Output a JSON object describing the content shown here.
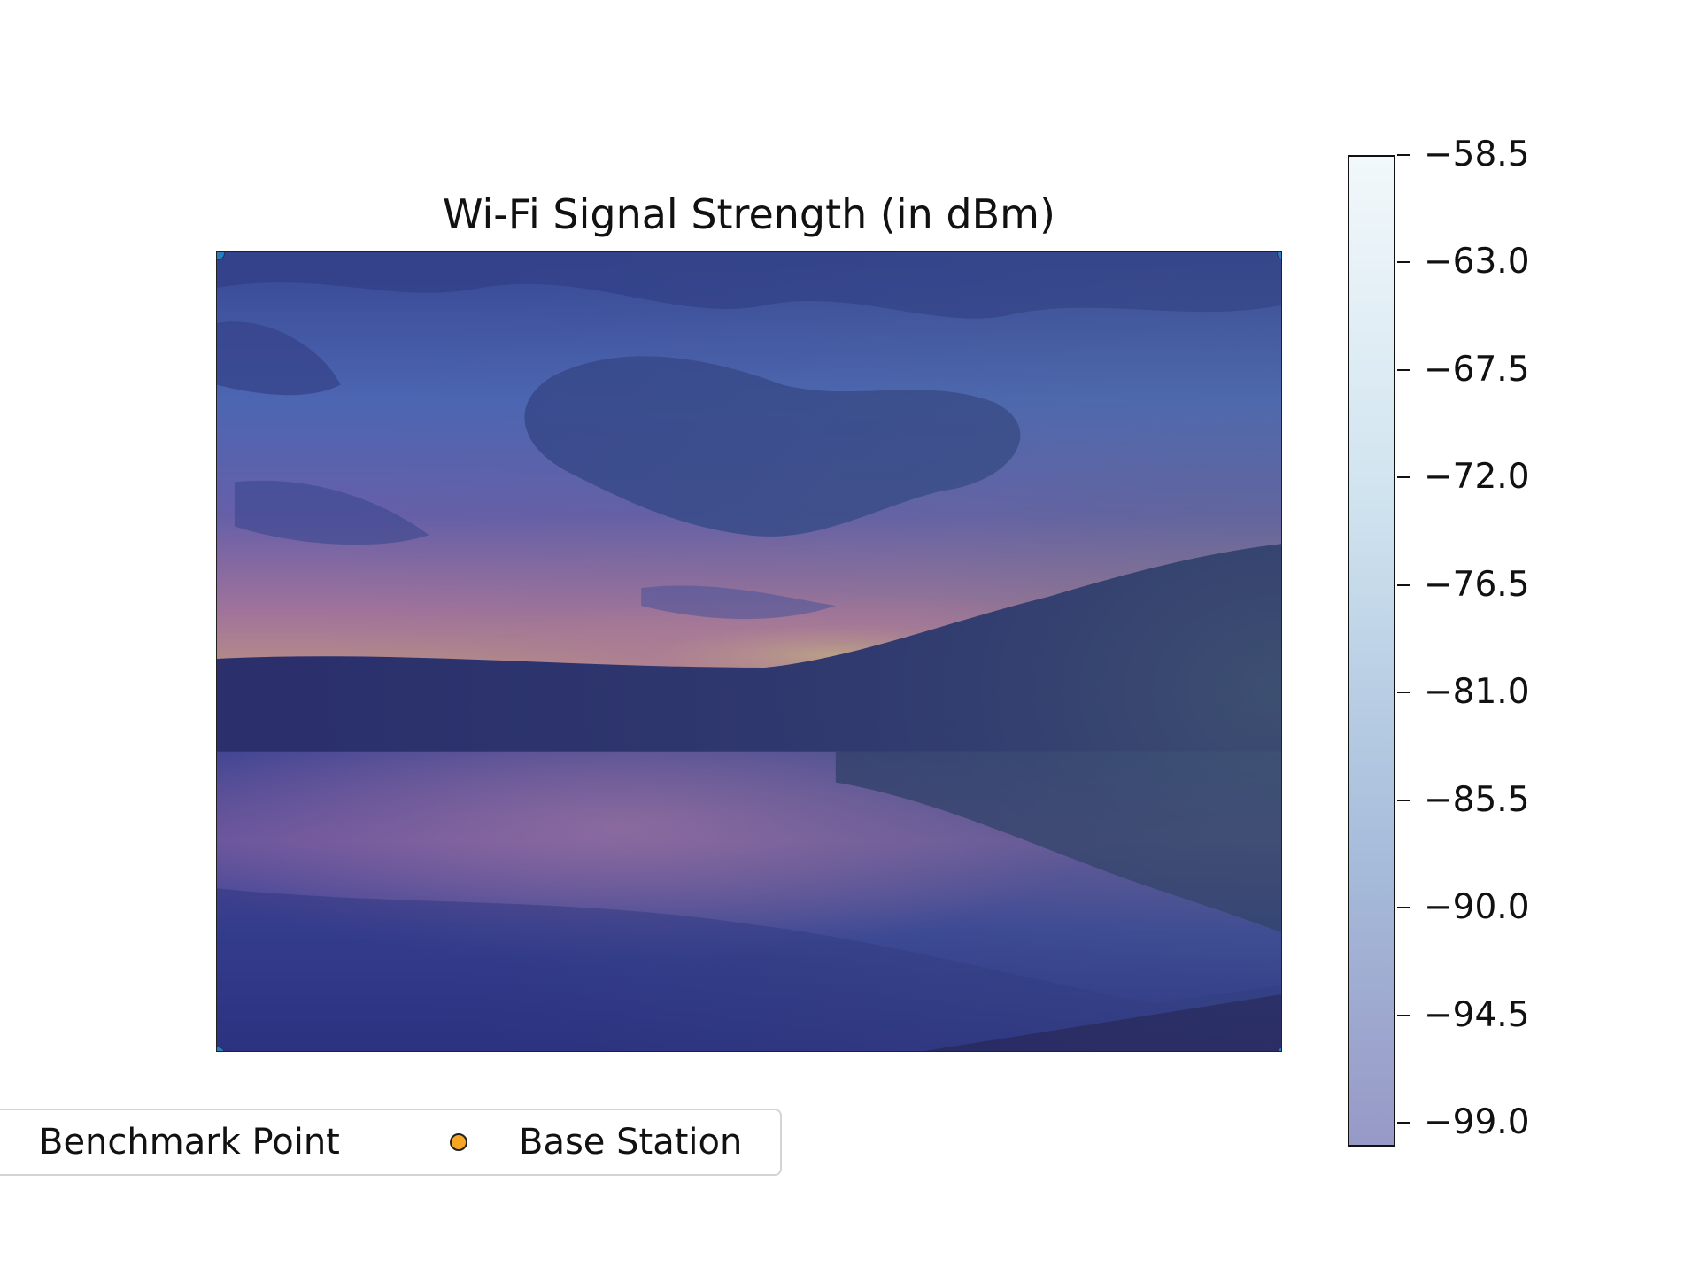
{
  "chart_data": {
    "type": "heatmap",
    "title": "Wi-Fi Signal Strength (in dBm)",
    "xlabel": "",
    "ylabel": "",
    "background_image": "lake-sunset-photo",
    "colormap": "Blues",
    "colorbar": {
      "range": [
        -100.0,
        -58.5
      ],
      "ticks": [
        -58.5,
        -63.0,
        -67.5,
        -72.0,
        -76.5,
        -81.0,
        -85.5,
        -90.0,
        -94.5,
        -99.0
      ],
      "tick_labels": [
        "−58.5",
        "−63.0",
        "−67.5",
        "−72.0",
        "−76.5",
        "−81.0",
        "−85.5",
        "−90.0",
        "−94.5",
        "−99.0"
      ],
      "color_top": "#f2f8fb",
      "color_bottom": "#9799c6"
    },
    "legend": {
      "placement": "bottom-left",
      "entries": [
        {
          "label": "Benchmark Point",
          "marker_color": "#2a7bbf"
        },
        {
          "label": "Base Station",
          "marker_color": "#f5a623"
        }
      ]
    },
    "benchmark_points": [
      {
        "x": 0,
        "y": 0
      },
      {
        "x": 1,
        "y": 0
      },
      {
        "x": 0,
        "y": 1
      },
      {
        "x": 1,
        "y": 1
      }
    ],
    "grid": false
  }
}
